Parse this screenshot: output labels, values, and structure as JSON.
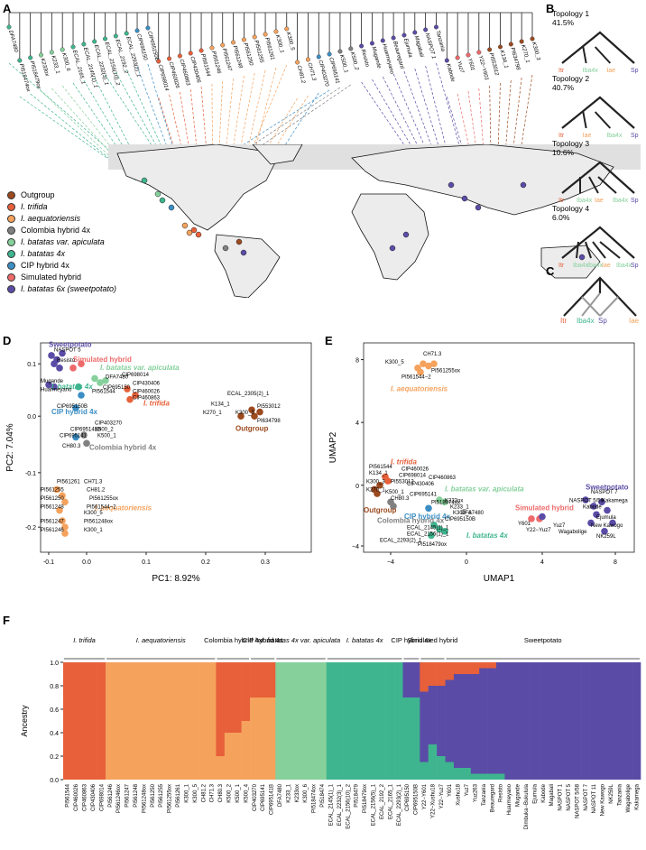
{
  "panels": {
    "a": "A",
    "b": "B",
    "c": "C",
    "d": "D",
    "e": "E",
    "f": "F"
  },
  "colors": {
    "outgroup": "#9c4a1f",
    "trifida": "#e7603a",
    "aequatoriensis": "#f5a25d",
    "colombia": "#808080",
    "apiculata": "#86d09b",
    "batatas4x": "#3fb58f",
    "cip": "#3b8ec4",
    "simulated": "#ee6a6a",
    "sweetpotato": "#5a4ca6"
  },
  "legend": [
    {
      "key": "outgroup",
      "label": "Outgroup",
      "italic": false
    },
    {
      "key": "trifida",
      "label": "I. trifida",
      "italic": true
    },
    {
      "key": "aequatoriensis",
      "label": "I. aequatoriensis",
      "italic": true
    },
    {
      "key": "colombia",
      "label": "Colombia hybrid 4x",
      "italic": false
    },
    {
      "key": "apiculata",
      "label": "I. batatas var. apiculata",
      "italic": true
    },
    {
      "key": "batatas4x",
      "label": "I. batatas 4x",
      "italic": true
    },
    {
      "key": "cip",
      "label": "CIP hybrid 4x",
      "italic": false
    },
    {
      "key": "simulated",
      "label": "Simulated hybrid",
      "italic": false
    },
    {
      "key": "sweetpotato",
      "label": "I. batatas 6x (sweetpotato)",
      "italic": true
    }
  ],
  "topologies": [
    {
      "title": "Topology 1",
      "pct": "41.5%",
      "tips": [
        "Itr",
        "Iba4x",
        "Iae",
        "Sp"
      ]
    },
    {
      "title": "Topology 2",
      "pct": "40.7%",
      "tips": [
        "Itr",
        "Iae",
        "Iba4x",
        "Sp"
      ]
    },
    {
      "title": "Topology 3",
      "pct": "10.6%",
      "tips": [
        "Itr",
        "Iba4x",
        "Iae",
        "Iba4x",
        "Sp"
      ]
    },
    {
      "title": "Topology 4",
      "pct": "6.0%",
      "tips": [
        "Itr",
        "Iba4x",
        "Iba4x",
        "Iae",
        "Iba4x",
        "Sp"
      ]
    }
  ],
  "panel_c_tips": [
    "Itr",
    "Iba4x",
    "Sp",
    "Iae"
  ],
  "pca": {
    "xlabel": "PC1: 8.92%",
    "ylabel": "PC2: 7.04%",
    "xticks": [
      "-0.1",
      "0.0",
      "0.1",
      "0.2",
      "0.3"
    ],
    "yticks": [
      "0.1",
      "0.0",
      "-0.1",
      "-0.2"
    ],
    "group_labels": [
      "Sweetpotato",
      "Simulated hybrid",
      "I. batatas var. apiculata",
      "I. batatas 4x",
      "CIP hybrid 4x",
      "I. trifida",
      "Colombia hybrid 4x",
      "Outgroup",
      "I. aequatoriensis"
    ],
    "point_labels": [
      "NASPOT 5",
      "Resisto",
      "Mugande",
      "Huarmeyano",
      "DFA7480",
      "CIP698014",
      "CIP430406",
      "CIP695150",
      "PI561544",
      "CIP460026",
      "CIP460863",
      "CIP695150B",
      "CIP403270",
      "CIP695141B",
      "K500_2",
      "CIP695141",
      "K500_1",
      "CH80.3",
      "ECAL_2305(2)_1",
      "K134_1",
      "PI553012",
      "K300_3",
      "K270_1",
      "PI634798",
      "PI561261",
      "CH71.3",
      "PI561255",
      "CH81.2",
      "PI561250",
      "PI561255ox",
      "PI561248",
      "PI561544−2",
      "K300_5",
      "PI561247",
      "PI561248ox",
      "PI561246",
      "K300_1"
    ]
  },
  "umap": {
    "xlabel": "UMAP1",
    "ylabel": "UMAP2",
    "xticks": [
      "−4",
      "0",
      "4",
      "8"
    ],
    "yticks": [
      "8",
      "4",
      "0",
      "−4"
    ],
    "group_labels": [
      "I. aequatoriensis",
      "I. trifida",
      "I. batatas var. apiculata",
      "Outgroup",
      "Colombia hybrid 4x",
      "CIP hybrid 4x",
      "I. batatas 4x",
      "Simulated hybrid",
      "Sweetpotato"
    ],
    "point_labels": [
      "CH71.3",
      "K300_5",
      "PI561255ox",
      "PI561544−2",
      "PI561544",
      "CIP460026",
      "K134_1",
      "CIP698014",
      "CIP460863",
      "K300_3",
      "PI553012",
      "CIP430406",
      "K270_1",
      "K500_1",
      "CIP695141",
      "CH80.3",
      "PI518474ox",
      "K233ox",
      "K233_1",
      "K300_6",
      "DFA7480",
      "CIP695150B",
      "ECAL_2145(1)_1",
      "ECAL_2156(1)_1",
      "ECAL_2293(2)_1",
      "PI518479ox",
      "NASPOT 7",
      "NASPOT 5/58",
      "Kakamega",
      "Kabode",
      "Ejumula",
      "New Kawogo",
      "Y601",
      "Yuz7",
      "Y22−Yuz7",
      "Wagabolige",
      "NK259L"
    ]
  },
  "structure": {
    "ylabel": "Ancestry",
    "yticks": [
      "1.0",
      "0.8",
      "0.6",
      "0.4",
      "0.2",
      "0.0"
    ],
    "groups": [
      "I. trifida",
      "I. aequatoriensis",
      "Colombia hybrid 4x",
      "CIP hybrid 4x",
      "I. batatas 4x var. apiculata",
      "I. batatas 4x",
      "CIP hybrid 4x",
      "Simulated hybrid",
      "Sweetpotato"
    ],
    "samples": [
      "PI561544",
      "CIP460026",
      "CIP460863",
      "CIP430406",
      "CIP698014",
      "PI561246",
      "PI561246ox",
      "PI561247",
      "PI561248",
      "PI561248ox",
      "PI561250",
      "PI561255",
      "PI561255ox",
      "PI561261",
      "K300_1",
      "K300_5",
      "CH81.2",
      "CH71.3",
      "CH80.3",
      "K500_2",
      "K500_1",
      "K500_4",
      "CIP403270",
      "CIP695141",
      "CIP695141B",
      "DFA7480",
      "K233_1",
      "K233ox",
      "K300_6",
      "PI518474ox",
      "PI518474",
      "ECAL_2145(1)_1",
      "ECAL_2232(3)_1",
      "ECAL_2156(10)_2",
      "PI518479",
      "PI518479ox",
      "ECAL_2156(5)_1",
      "ECAL_2192_2",
      "ECAL_2165_1",
      "ECAL_2293(2)_1",
      "CIP695150",
      "CIP695150B",
      "Y22−Y601",
      "Y22−Xushu18",
      "Y22−Yuz7",
      "Y601",
      "Xushu18",
      "Yuz7",
      "Yuz263",
      "Tanzania",
      "Beauregard",
      "Resisto",
      "Huarmeyano",
      "Mugande",
      "Dimbuka−Bukulula",
      "Ejumula",
      "Kabode",
      "Magabali",
      "NASPOT 1",
      "NASPOT 5",
      "NASPOT 5/58",
      "NASPOT 7",
      "NASPOT 11",
      "New Kawogo",
      "NK259L",
      "Tanzania",
      "Wagabolige",
      "Kakamega"
    ],
    "ancestry": [
      [
        1,
        0,
        0
      ],
      [
        1,
        0,
        0
      ],
      [
        1,
        0,
        0
      ],
      [
        1,
        0,
        0
      ],
      [
        1,
        0,
        0
      ],
      [
        0,
        1,
        0
      ],
      [
        0,
        1,
        0
      ],
      [
        0,
        1,
        0
      ],
      [
        0,
        1,
        0
      ],
      [
        0,
        1,
        0
      ],
      [
        0,
        1,
        0
      ],
      [
        0,
        1,
        0
      ],
      [
        0,
        1,
        0
      ],
      [
        0,
        1,
        0
      ],
      [
        0,
        1,
        0
      ],
      [
        0,
        1,
        0
      ],
      [
        0,
        1,
        0
      ],
      [
        0,
        1,
        0
      ],
      [
        0.8,
        0.2,
        0
      ],
      [
        0.6,
        0.4,
        0
      ],
      [
        0.6,
        0.4,
        0
      ],
      [
        0.5,
        0.5,
        0
      ],
      [
        0.3,
        0.7,
        0
      ],
      [
        0.3,
        0.7,
        0
      ],
      [
        0.3,
        0.7,
        0
      ],
      [
        0,
        0,
        0
      ],
      [
        0,
        0,
        0
      ],
      [
        0,
        0,
        0
      ],
      [
        0,
        0,
        0
      ],
      [
        0,
        0,
        0
      ],
      [
        0,
        0,
        0
      ],
      [
        0,
        0,
        0
      ],
      [
        0,
        0,
        0
      ],
      [
        0,
        0,
        0
      ],
      [
        0,
        0,
        0
      ],
      [
        0,
        0,
        0
      ],
      [
        0,
        0,
        0
      ],
      [
        0,
        0,
        0
      ],
      [
        0,
        0,
        0
      ],
      [
        0,
        0,
        0
      ],
      [
        0,
        0,
        0.3
      ],
      [
        0,
        0,
        0.3
      ],
      [
        0.25,
        0,
        0.6
      ],
      [
        0.2,
        0,
        0.5
      ],
      [
        0.2,
        0,
        0.6
      ],
      [
        0.15,
        0,
        0.7
      ],
      [
        0.1,
        0,
        0.8
      ],
      [
        0.1,
        0,
        0.8
      ],
      [
        0.1,
        0,
        0.85
      ],
      [
        0.05,
        0,
        0.9
      ],
      [
        0.05,
        0,
        0.9
      ],
      [
        0,
        0,
        0.95
      ],
      [
        0,
        0,
        1
      ],
      [
        0,
        0,
        1
      ],
      [
        0,
        0,
        1
      ],
      [
        0,
        0,
        1
      ],
      [
        0,
        0,
        1
      ],
      [
        0,
        0,
        1
      ],
      [
        0,
        0,
        1
      ],
      [
        0,
        0,
        1
      ],
      [
        0,
        0,
        1
      ],
      [
        0,
        0,
        1
      ],
      [
        0,
        0,
        1
      ],
      [
        0,
        0,
        1
      ],
      [
        0,
        0,
        1
      ],
      [
        0,
        0,
        1
      ],
      [
        0,
        0,
        1
      ],
      [
        0,
        0,
        1
      ]
    ]
  },
  "tree_tips": [
    "DFA7480",
    "PI518474ox",
    "PI518479ox",
    "K233ox",
    "K233_1",
    "K300_6",
    "ECAL_2165_1",
    "ECAL_2145(1)_1",
    "ECAL_2232(3)_1",
    "ECAL_2156(10)_2",
    "ECAL_2192_2",
    "ECAL_2293(2)_1",
    "CIP695150",
    "CIP695150B",
    "CIP698014",
    "CIP460026",
    "CIP460863",
    "CIP430406",
    "PI561544",
    "PI561246",
    "PI561247",
    "PI561248",
    "PI561250",
    "PI561255",
    "PI561261",
    "K300_1",
    "K300_5",
    "CH81.2",
    "CH71.3",
    "CIP403270",
    "CIP695141",
    "K500_1",
    "K500_2",
    "Resisto",
    "Mugande",
    "Huarmeyano",
    "Beauregard",
    "Ejumula",
    "Magabali",
    "NASPOT 1",
    "Tanzania",
    "Kabode",
    "Yuz7",
    "Y601",
    "Y22−Y601",
    "PI553012",
    "K134_1",
    "PI634798",
    "K270_1",
    "K300_3"
  ]
}
